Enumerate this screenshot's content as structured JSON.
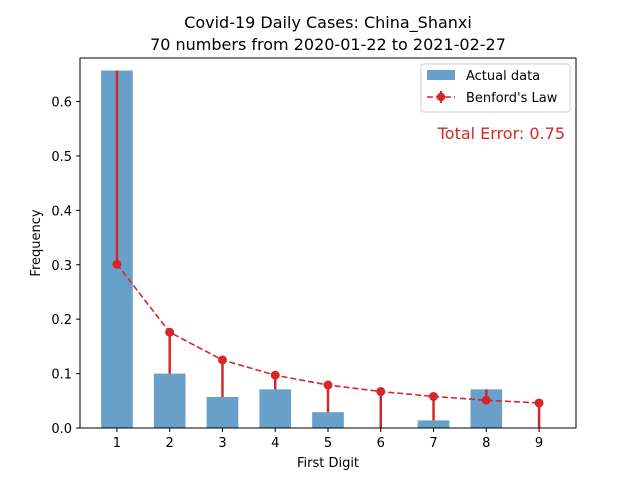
{
  "chart_data": {
    "type": "bar",
    "title": "Covid-19 Daily Cases: China_Shanxi",
    "subtitle": "70 numbers from 2020-01-22 to 2021-02-27",
    "xlabel": "First Digit",
    "ylabel": "Frequency",
    "categories": [
      "1",
      "2",
      "3",
      "4",
      "5",
      "6",
      "7",
      "8",
      "9"
    ],
    "x": [
      1,
      2,
      3,
      4,
      5,
      6,
      7,
      8,
      9
    ],
    "ylim": [
      0,
      0.68
    ],
    "xlim": [
      0.3,
      9.7
    ],
    "yticks": [
      0.0,
      0.1,
      0.2,
      0.3,
      0.4,
      0.5,
      0.6
    ],
    "ytick_labels": [
      "0.0",
      "0.1",
      "0.2",
      "0.3",
      "0.4",
      "0.5",
      "0.6"
    ],
    "series": [
      {
        "name": "Actual data",
        "kind": "bar",
        "color": "#4f8fc0",
        "values": [
          0.657,
          0.1,
          0.057,
          0.071,
          0.029,
          0.0,
          0.014,
          0.071,
          0.0
        ]
      },
      {
        "name": "Benford's Law",
        "kind": "line",
        "style": "dashed",
        "marker": "circle",
        "color": "#d62728",
        "values": [
          0.301,
          0.176,
          0.125,
          0.097,
          0.079,
          0.067,
          0.058,
          0.051,
          0.046
        ]
      }
    ],
    "annotation": {
      "text": "Total Error: 0.75",
      "color": "#d62728"
    },
    "legend": {
      "position": "top-right"
    },
    "grid": false
  }
}
